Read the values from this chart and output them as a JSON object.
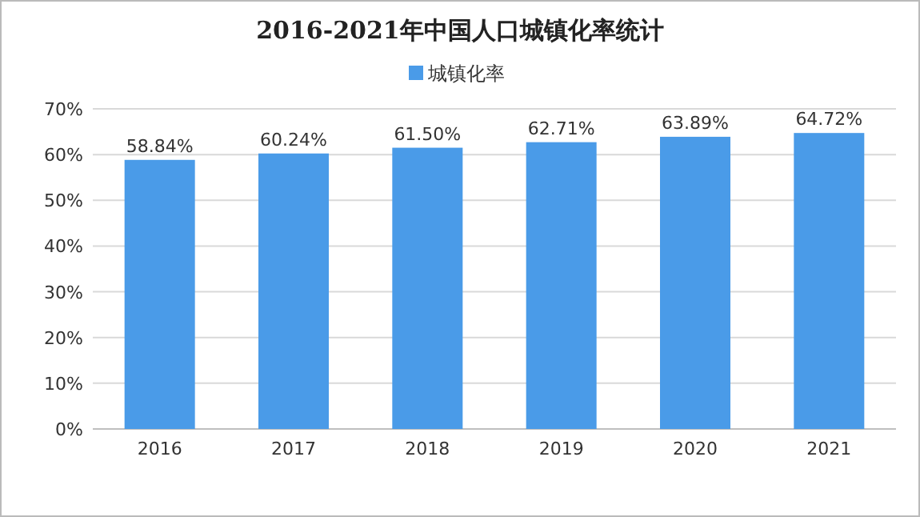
{
  "chart_data": {
    "type": "bar",
    "title": "2016-2021年中国人口城镇化率统计",
    "categories": [
      "2016",
      "2017",
      "2018",
      "2019",
      "2020",
      "2021"
    ],
    "series": [
      {
        "name": "城镇化率",
        "color": "#4a9be8",
        "values": [
          58.84,
          60.24,
          61.5,
          62.71,
          63.89,
          64.72
        ],
        "value_labels": [
          "58.84%",
          "60.24%",
          "61.50%",
          "62.71%",
          "63.89%",
          "64.72%"
        ]
      }
    ],
    "ylim": [
      0,
      70
    ],
    "yticks": [
      {
        "value": 0,
        "label": "0%"
      },
      {
        "value": 10,
        "label": "10%"
      },
      {
        "value": 20,
        "label": "20%"
      },
      {
        "value": 30,
        "label": "30%"
      },
      {
        "value": 40,
        "label": "40%"
      },
      {
        "value": 50,
        "label": "50%"
      },
      {
        "value": 60,
        "label": "60%"
      },
      {
        "value": 70,
        "label": "70%"
      }
    ],
    "grid": "y",
    "legend": "top"
  }
}
